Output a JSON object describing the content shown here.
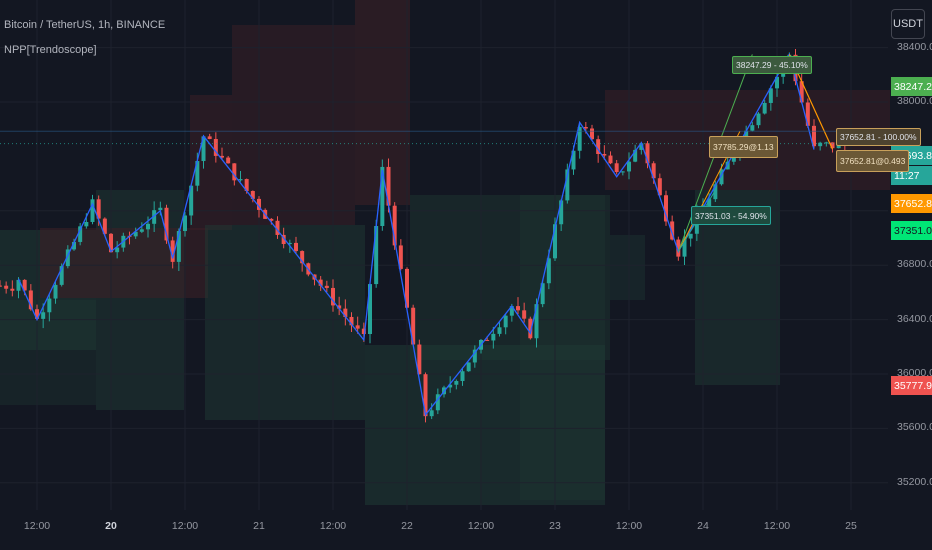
{
  "header": {
    "symbol": "Bitcoin / TetherUS, 1h, BINANCE",
    "indicator": "NPP[Trendoscope]"
  },
  "currency_button": "USDT",
  "colors": {
    "background": "#131722",
    "up": "#26a69a",
    "down": "#ef5350",
    "zigzag": "#2962ff",
    "projection_up": "#4caf50",
    "projection_target": "#ff9800"
  },
  "price_axis": {
    "ticks": [
      "38400.00",
      "38000.00",
      "37200.00",
      "36800.00",
      "36400.00",
      "36000.00",
      "35600.00",
      "35200.00"
    ]
  },
  "time_axis": {
    "ticks": [
      {
        "label": "12:00",
        "bold": false
      },
      {
        "label": "20",
        "bold": true
      },
      {
        "label": "12:00",
        "bold": false
      },
      {
        "label": "21",
        "bold": false
      },
      {
        "label": "12:00",
        "bold": false
      },
      {
        "label": "22",
        "bold": false
      },
      {
        "label": "12:00",
        "bold": false
      },
      {
        "label": "23",
        "bold": false
      },
      {
        "label": "12:00",
        "bold": false
      },
      {
        "label": "24",
        "bold": false
      },
      {
        "label": "12:00",
        "bold": false
      },
      {
        "label": "25",
        "bold": false
      }
    ]
  },
  "price_badges": [
    {
      "text": "38247.29",
      "bg": "#4caf50",
      "fg": "#ffffff"
    },
    {
      "text": "37693.82",
      "bg": "#26a69a",
      "fg": "#ffffff"
    },
    {
      "text": "11:27",
      "bg": "#26a69a",
      "fg": "#ffffff"
    },
    {
      "text": "37652.81",
      "bg": "#ff9800",
      "fg": "#ffffff"
    },
    {
      "text": "37351.03",
      "bg": "#00e676",
      "fg": "#131722"
    },
    {
      "text": "35777.96",
      "bg": "#ef5350",
      "fg": "#ffffff"
    }
  ],
  "annotations": [
    {
      "text": "38247.29 - 45.10%",
      "bg": "#3c5a3e",
      "fg": "#e0e3eb",
      "border": "#4caf50"
    },
    {
      "text": "37785.29@1.13",
      "bg": "#6b5836",
      "fg": "#f0e0c0",
      "border": "#c8a05a"
    },
    {
      "text": "37351.03 - 54.90%",
      "bg": "#1e4a3e",
      "fg": "#e0e3eb",
      "border": "#26a69a"
    },
    {
      "text": "37652.81 - 100.00%",
      "bg": "#4e4330",
      "fg": "#e0e3eb",
      "border": "#c8a05a"
    },
    {
      "text": "37652.81@0.493",
      "bg": "#6b5836",
      "fg": "#f0e0c0",
      "border": "#c8a05a"
    }
  ],
  "chart_data": {
    "type": "candlestick",
    "title": "Bitcoin / TetherUS, 1h, BINANCE",
    "y_range": [
      35000,
      38750
    ],
    "x_range": [
      "2022-02-19 06:00",
      "2022-02-25 06:00"
    ],
    "grid": true,
    "series": [
      {
        "name": "NPP[Trendoscope]",
        "type": "zigzag",
        "points": [
          {
            "x": "2022-02-19 09:00",
            "y": 36700
          },
          {
            "x": "2022-02-19 12:00",
            "y": 36400
          },
          {
            "x": "2022-02-19 21:00",
            "y": 37250
          },
          {
            "x": "2022-02-20 00:00",
            "y": 36900
          },
          {
            "x": "2022-02-20 08:00",
            "y": 37200
          },
          {
            "x": "2022-02-20 10:00",
            "y": 36850
          },
          {
            "x": "2022-02-20 15:00",
            "y": 37750
          },
          {
            "x": "2022-02-21 17:00",
            "y": 36250
          },
          {
            "x": "2022-02-21 20:00",
            "y": 37500
          },
          {
            "x": "2022-02-22 03:00",
            "y": 35700
          },
          {
            "x": "2022-02-22 17:00",
            "y": 36500
          },
          {
            "x": "2022-02-22 20:00",
            "y": 36300
          },
          {
            "x": "2022-02-23 04:00",
            "y": 37850
          },
          {
            "x": "2022-02-23 10:00",
            "y": 37450
          },
          {
            "x": "2022-02-23 14:00",
            "y": 37700
          },
          {
            "x": "2022-02-23 20:00",
            "y": 36900
          },
          {
            "x": "2022-02-24 14:00",
            "y": 38350
          },
          {
            "x": "2022-02-24 18:00",
            "y": 37650
          }
        ]
      }
    ],
    "levels": [
      {
        "label": "38247.29 - 45.10%",
        "value": 38247.29
      },
      {
        "label": "37785.29@1.13",
        "value": 37785.29
      },
      {
        "label": "37351.03 - 54.90%",
        "value": 37351.03
      },
      {
        "label": "37652.81 - 100.00%",
        "value": 37652.81
      },
      {
        "label": "37652.81@0.493",
        "value": 37652.81
      }
    ],
    "last_price": 37693.82,
    "countdown": "11:27",
    "low_marker": 35777.96
  }
}
